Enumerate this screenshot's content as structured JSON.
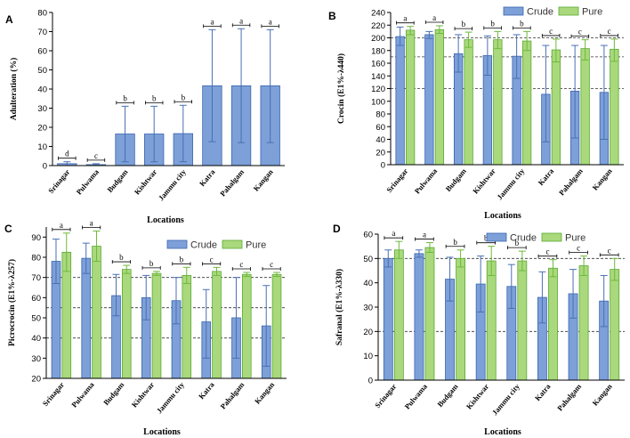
{
  "colors": {
    "crude_fill": "#7da0d8",
    "crude_stroke": "#3a64b0",
    "pure_fill": "#a9d97c",
    "pure_stroke": "#5aa832"
  },
  "chart_data": [
    {
      "panel": "A",
      "type": "bar",
      "title": "",
      "xlabel": "Locations",
      "ylabel": "Adulteration (%)",
      "ylim": [
        0,
        80
      ],
      "yticks": [
        0,
        10,
        20,
        30,
        40,
        50,
        60,
        70,
        80
      ],
      "categories": [
        "Srinagar",
        "Pulwama",
        "Budgam",
        "Kishtwar",
        "Jammu city",
        "Katra",
        "Pahalgam",
        "Kangan"
      ],
      "series": [
        {
          "name": "Adulteration",
          "values": [
            1,
            0.5,
            16.5,
            16.5,
            16.7,
            41.7,
            41.7,
            41.7
          ],
          "err_high": [
            2,
            1,
            31,
            31,
            31.5,
            71,
            71.5,
            71
          ],
          "err_low": [
            0,
            0,
            2,
            2,
            2,
            12.5,
            12,
            12
          ]
        }
      ],
      "significance": [
        "d",
        "c",
        "b",
        "b",
        "b",
        "a",
        "a",
        "a"
      ],
      "reference_lines": []
    },
    {
      "panel": "B",
      "type": "bar",
      "title": "",
      "xlabel": "Locations",
      "ylabel": "Crocin (E1%-λ440)",
      "ylim": [
        0,
        240
      ],
      "yticks": [
        0,
        20,
        40,
        60,
        80,
        100,
        120,
        140,
        160,
        180,
        200,
        220,
        240
      ],
      "categories": [
        "Srinagar",
        "Pulwama",
        "Budgam",
        "Kishtwar",
        "Jammu city",
        "Katra",
        "Pahalgam",
        "Kangan"
      ],
      "series": [
        {
          "name": "Crude",
          "values": [
            202,
            205,
            175,
            172,
            171,
            111,
            116,
            114
          ],
          "err_high": [
            217,
            210,
            205,
            203,
            205,
            188,
            188,
            188
          ],
          "err_low": [
            188,
            199,
            146,
            141,
            136,
            36,
            42,
            40
          ]
        },
        {
          "name": "Pure",
          "values": [
            212,
            213,
            197,
            197,
            195,
            181,
            183,
            182
          ],
          "err_high": [
            218,
            219,
            209,
            210,
            210,
            198,
            197,
            198
          ],
          "err_low": [
            205,
            207,
            185,
            183,
            180,
            162,
            165,
            163
          ]
        }
      ],
      "significance": [
        "a",
        "a",
        "b",
        "b",
        "b",
        "c",
        "c",
        "c"
      ],
      "reference_lines": [
        120,
        170,
        200
      ]
    },
    {
      "panel": "C",
      "type": "bar",
      "title": "",
      "xlabel": "Locations",
      "ylabel": "Picrocrocin (E1%-λ257)",
      "ylim": [
        20,
        95
      ],
      "yticks": [
        20,
        30,
        40,
        50,
        60,
        70,
        80,
        90
      ],
      "categories": [
        "Srinagar",
        "Pulwama",
        "Budgam",
        "Kishtwar",
        "Jammu city",
        "Katra",
        "Pahalgam",
        "Kangan"
      ],
      "series": [
        {
          "name": "Crude",
          "values": [
            78,
            79.5,
            61,
            60,
            58.5,
            48,
            50,
            46
          ],
          "err_high": [
            89,
            87,
            71.5,
            71,
            70,
            64,
            70,
            66
          ],
          "err_low": [
            67,
            72,
            51,
            49,
            47,
            30,
            30,
            26
          ]
        },
        {
          "name": "Pure",
          "values": [
            82.5,
            85.5,
            74,
            72,
            71,
            73,
            71.5,
            71.5
          ],
          "err_high": [
            92,
            93,
            76,
            73,
            75,
            75,
            72.5,
            72.5
          ],
          "err_low": [
            73,
            78,
            72,
            71,
            67,
            71,
            70.5,
            70.5
          ]
        }
      ],
      "significance": [
        "a",
        "a",
        "b",
        "b",
        "b",
        "c",
        "c",
        "c"
      ],
      "reference_lines": [
        40,
        55,
        70
      ]
    },
    {
      "panel": "D",
      "type": "bar",
      "title": "",
      "xlabel": "Locations",
      "ylabel": "Safranal (E1%-λ330)",
      "ylim": [
        0,
        60
      ],
      "yticks": [
        0,
        10,
        20,
        30,
        40,
        50,
        60
      ],
      "categories": [
        "Srinagar",
        "Pulwama",
        "Budgam",
        "Kishtwar",
        "Jammu city",
        "Katra",
        "Pahalgam",
        "Kangan"
      ],
      "series": [
        {
          "name": "Crude",
          "values": [
            50,
            52,
            41.5,
            39.5,
            38.5,
            34,
            35.5,
            32.5
          ],
          "err_high": [
            53.5,
            53.5,
            50.5,
            51,
            47.5,
            44.5,
            45.5,
            43
          ],
          "err_low": [
            46.5,
            50.5,
            32.5,
            28,
            29.5,
            23.5,
            25.5,
            22
          ]
        },
        {
          "name": "Pure",
          "values": [
            53.5,
            54.5,
            50,
            49,
            49,
            46,
            47,
            45.5
          ],
          "err_high": [
            57,
            56.5,
            53.5,
            55,
            53,
            49.5,
            51,
            50
          ],
          "err_low": [
            50,
            52.5,
            46.5,
            43,
            45,
            42.5,
            43,
            41
          ]
        }
      ],
      "significance": [
        "a",
        "a",
        "b",
        "b",
        "b",
        "c",
        "c",
        "c"
      ],
      "reference_lines": [
        20,
        50
      ]
    }
  ]
}
